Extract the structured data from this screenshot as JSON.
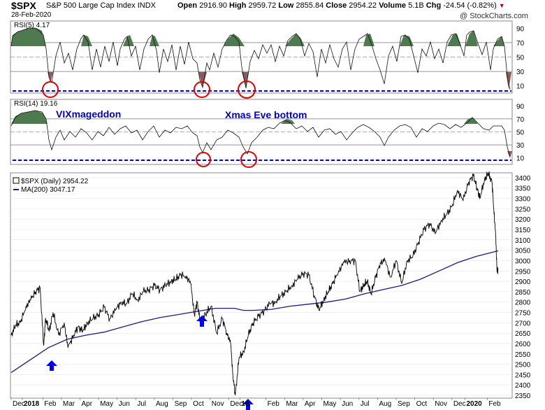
{
  "header": {
    "symbol": "$SPX",
    "name": "S&P 500 Large Cap Index",
    "exchange": "INDX",
    "date": "28-Feb-2020",
    "open_label": "Open",
    "open": "2916.90",
    "high_label": "High",
    "high": "2959.72",
    "low_label": "Low",
    "low": "2855.84",
    "close_label": "Close",
    "close": "2954.22",
    "volume_label": "Volume",
    "volume": "5.1B",
    "chg_label": "Chg",
    "chg": "-24.54 (-0.82%)",
    "watermark": "@ StockCharts.com"
  },
  "annotations": {
    "vixmageddon": "VIXmageddon",
    "xmas": "Xmas Eve bottom"
  },
  "colors": {
    "rsi_fill": "#4f7a4f",
    "rsi_oversold_fill": "#8c5a5a",
    "ma_line": "#1a1a8c",
    "dashed_line": "#0000cc",
    "circle": "#e00000",
    "arrow": "#0000ee",
    "annotation_text": "#0000cc"
  },
  "chart_data": [
    {
      "type": "line",
      "panel": "rsi5",
      "title": "RSI(5) 4.17",
      "ylim": [
        0,
        100
      ],
      "yticks": [
        10,
        30,
        50,
        70,
        90
      ],
      "reference_lines": [
        30,
        50,
        70
      ],
      "dashed_level": 5,
      "last_value": 4.17
    },
    {
      "type": "line",
      "panel": "rsi14",
      "title": "RSI(14) 19.16",
      "ylim": [
        0,
        100
      ],
      "yticks": [
        10,
        30,
        50,
        70,
        90
      ],
      "reference_lines": [
        30,
        50,
        70
      ],
      "dashed_level": 19.16,
      "last_value": 19.16
    },
    {
      "type": "line",
      "panel": "price",
      "legend": [
        {
          "name": "$SPX (Daily) 2954.22"
        },
        {
          "name": "MA(200) 3047.17"
        }
      ],
      "ylim": [
        2340,
        3420
      ],
      "yticks": [
        2350,
        2400,
        2450,
        2500,
        2550,
        2600,
        2650,
        2700,
        2750,
        2800,
        2850,
        2900,
        2950,
        3000,
        3050,
        3100,
        3150,
        3200,
        3250,
        3300,
        3350,
        3400
      ],
      "x_labels": [
        "Dec",
        "2018",
        "Feb",
        "Mar",
        "Apr",
        "May",
        "Jun",
        "Jul",
        "Aug",
        "Sep",
        "Oct",
        "Nov",
        "Dec",
        "19",
        "Feb",
        "Mar",
        "Apr",
        "May",
        "Jun",
        "Jul",
        "Aug",
        "Sep",
        "Oct",
        "Nov",
        "Dec",
        "2020",
        "Feb"
      ],
      "x_label_pos": [
        0,
        0.6,
        1.7,
        2.7,
        3.7,
        4.7,
        5.7,
        6.7,
        7.7,
        8.7,
        9.7,
        10.7,
        11.7,
        12.3,
        13.7,
        14.7,
        15.7,
        16.7,
        17.7,
        18.7,
        19.7,
        20.7,
        21.7,
        22.7,
        23.7,
        24.4,
        25.6
      ],
      "x_range": [
        0,
        26.9
      ],
      "series": [
        {
          "name": "$SPX (Daily) 2954.22",
          "x": [
            0,
            0.25,
            0.5,
            0.8,
            1.05,
            1.3,
            1.55,
            1.75,
            1.85,
            2.05,
            2.25,
            2.55,
            2.85,
            3.05,
            3.35,
            3.6,
            3.85,
            4.1,
            4.4,
            4.7,
            5.0,
            5.3,
            5.6,
            5.9,
            6.2,
            6.5,
            6.8,
            7.1,
            7.4,
            7.7,
            8.0,
            8.3,
            8.6,
            8.85,
            9.1,
            9.4,
            9.65,
            9.85,
            10.0,
            10.15,
            10.45,
            10.75,
            11.05,
            11.35,
            11.6,
            11.8,
            11.92,
            12.05,
            12.25,
            12.5,
            12.75,
            13.0,
            13.3,
            13.6,
            13.9,
            14.2,
            14.5,
            14.8,
            15.1,
            15.4,
            15.7,
            16.0,
            16.3,
            16.55,
            16.8,
            17.05,
            17.3,
            17.6,
            17.9,
            18.2,
            18.5,
            18.75,
            18.95,
            19.15,
            19.35,
            19.6,
            19.85,
            20.1,
            20.4,
            20.7,
            21.0,
            21.3,
            21.6,
            21.9,
            22.2,
            22.5,
            22.8,
            23.1,
            23.4,
            23.7,
            24.0,
            24.3,
            24.6,
            24.85,
            25.05,
            25.2,
            25.45,
            25.65,
            25.85,
            25.95,
            26.05,
            26.12,
            26.18
          ],
          "y": [
            2640,
            2690,
            2700,
            2780,
            2810,
            2850,
            2870,
            2590,
            2720,
            2660,
            2750,
            2640,
            2700,
            2580,
            2640,
            2680,
            2660,
            2700,
            2720,
            2740,
            2775,
            2720,
            2760,
            2800,
            2790,
            2840,
            2810,
            2850,
            2860,
            2880,
            2860,
            2880,
            2900,
            2910,
            2930,
            2925,
            2890,
            2740,
            2800,
            2710,
            2740,
            2780,
            2650,
            2720,
            2650,
            2600,
            2450,
            2350,
            2530,
            2560,
            2640,
            2700,
            2730,
            2760,
            2790,
            2800,
            2830,
            2850,
            2880,
            2910,
            2940,
            2930,
            2830,
            2760,
            2810,
            2850,
            2890,
            2950,
            2990,
            3000,
            3000,
            2850,
            2880,
            2900,
            2840,
            2920,
            2990,
            3000,
            2920,
            3000,
            2890,
            3000,
            3020,
            3090,
            3150,
            3180,
            3130,
            3190,
            3220,
            3260,
            3340,
            3290,
            3380,
            3410,
            3350,
            3300,
            3390,
            3420,
            3380,
            3250,
            3120,
            2960,
            2954
          ]
        },
        {
          "name": "MA(200) 3047.17",
          "x": [
            0,
            1.0,
            2.0,
            3.0,
            4.0,
            5.0,
            6.0,
            7.0,
            8.0,
            9.0,
            10.0,
            11.0,
            12.0,
            12.5,
            13.0,
            14.0,
            15.0,
            16.0,
            17.0,
            18.0,
            19.0,
            20.0,
            21.0,
            22.0,
            23.0,
            24.0,
            25.0,
            26.18
          ],
          "y": [
            2460,
            2520,
            2580,
            2620,
            2640,
            2655,
            2680,
            2705,
            2725,
            2740,
            2755,
            2770,
            2770,
            2760,
            2760,
            2765,
            2780,
            2790,
            2800,
            2815,
            2840,
            2860,
            2880,
            2910,
            2950,
            2990,
            3020,
            3047
          ]
        }
      ]
    }
  ]
}
